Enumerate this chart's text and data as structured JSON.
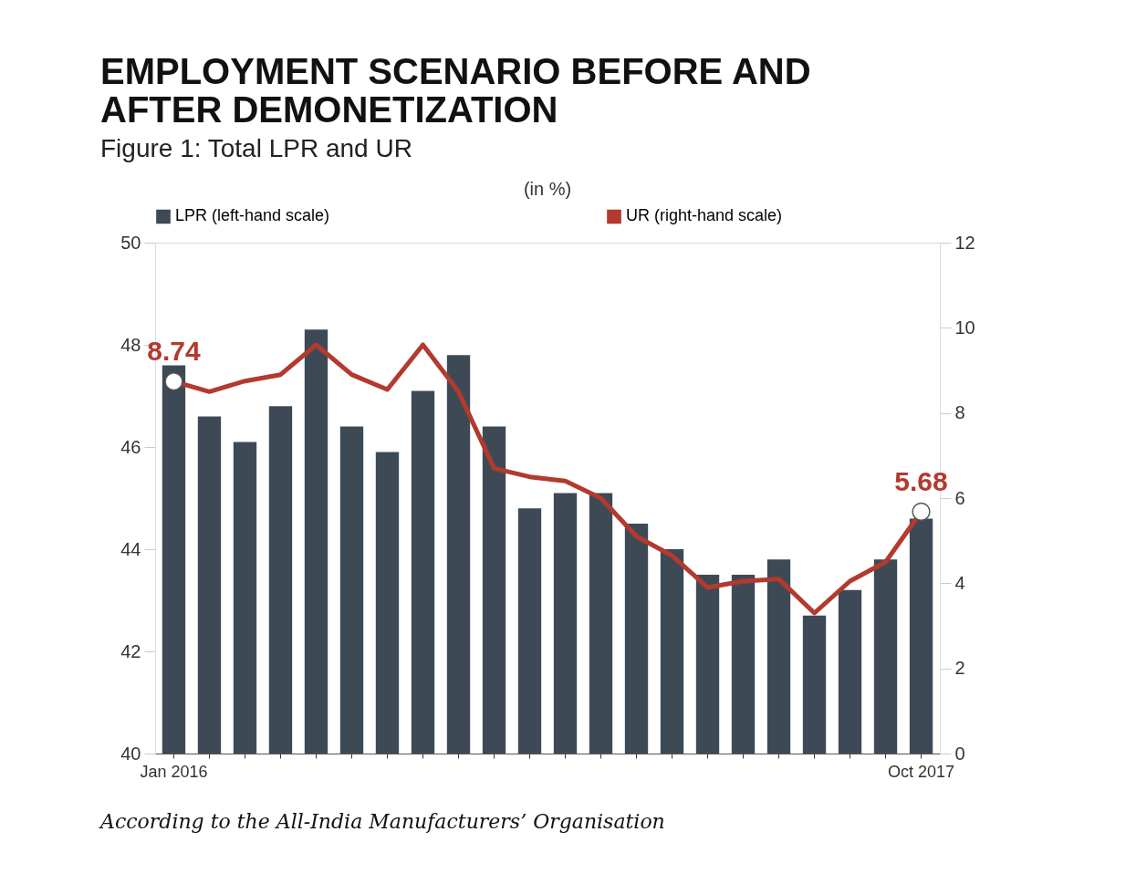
{
  "chart_data": {
    "type": "bar",
    "title": "EMPLOYMENT SCENARIO BEFORE AND AFTER DEMONETIZATION",
    "subtitle": "Figure 1: Total LPR and UR",
    "categories": [
      "Jan 2016",
      null,
      null,
      null,
      null,
      null,
      null,
      null,
      null,
      null,
      null,
      null,
      null,
      null,
      null,
      null,
      null,
      null,
      null,
      null,
      null,
      "Oct 2017"
    ],
    "series": [
      {
        "name": "LPR (left-hand scale)",
        "color": "#3d4a56",
        "values": [
          47.6,
          46.6,
          46.1,
          46.8,
          48.3,
          46.4,
          45.9,
          47.1,
          47.8,
          46.4,
          44.8,
          45.1,
          45.1,
          44.5,
          44.0,
          43.5,
          43.5,
          43.8,
          42.7,
          43.2,
          43.8,
          44.6
        ]
      },
      {
        "name": "UR (right-hand scale)",
        "type": "line",
        "axis": "y2",
        "color": "#b23a2e",
        "values": [
          8.74,
          8.5,
          8.75,
          8.9,
          9.6,
          8.9,
          8.55,
          9.6,
          8.5,
          6.7,
          6.5,
          6.4,
          6.0,
          5.1,
          4.65,
          3.9,
          4.05,
          4.1,
          3.3,
          4.05,
          4.5,
          5.68
        ],
        "value_labels": [
          "8.74",
          null,
          null,
          null,
          null,
          null,
          null,
          null,
          null,
          null,
          null,
          null,
          null,
          null,
          null,
          null,
          null,
          null,
          null,
          null,
          null,
          "5.68"
        ]
      }
    ],
    "ylim": [
      40,
      50
    ],
    "yticks": [
      40,
      42,
      44,
      46,
      48,
      50
    ],
    "y2lim": [
      0,
      12
    ],
    "y2ticks": [
      0,
      2,
      4,
      6,
      8,
      10,
      12
    ],
    "legend": "top",
    "grid": false,
    "annotations": [
      "(in %)",
      "According to the All-India Manufacturers’ Organisation"
    ]
  }
}
